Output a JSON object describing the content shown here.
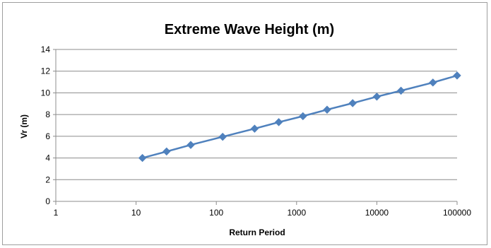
{
  "chart_data": {
    "type": "line",
    "title": "Extreme Wave Height (m)",
    "xlabel": "Return Period",
    "ylabel": "Vr (m)",
    "x_scale": "log",
    "xlim": [
      1,
      100000
    ],
    "ylim": [
      0,
      14
    ],
    "x_ticks": [
      "1",
      "10",
      "100",
      "1000",
      "10000",
      "100000"
    ],
    "y_ticks": [
      "0",
      "2",
      "4",
      "6",
      "8",
      "10",
      "12",
      "14"
    ],
    "grid": "horizontal",
    "legend": "none",
    "series": [
      {
        "color": "#4f81bd",
        "marker": "diamond",
        "x": [
          12,
          24,
          48,
          120,
          300,
          600,
          1200,
          2400,
          5000,
          10000,
          20000,
          50000,
          100000
        ],
        "y": [
          4.0,
          4.6,
          5.2,
          5.95,
          6.7,
          7.3,
          7.85,
          8.45,
          9.05,
          9.65,
          10.2,
          10.95,
          11.6
        ]
      }
    ]
  }
}
